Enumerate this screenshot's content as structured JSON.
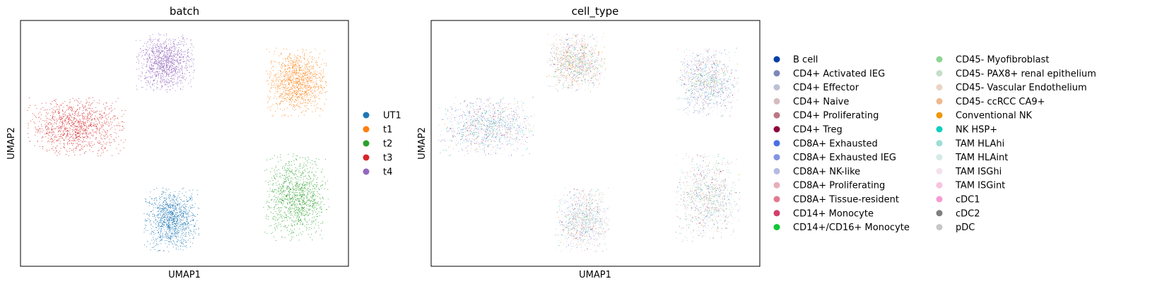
{
  "chart_data": [
    {
      "type": "scatter",
      "title": "batch",
      "xlabel": "UMAP1",
      "ylabel": "UMAP2",
      "grid": false,
      "ticks": false,
      "legend_placement": "right",
      "series": [
        {
          "name": "UT1",
          "color": "#1f77b4",
          "center": [
            0.46,
            0.19
          ],
          "spread": [
            0.085,
            0.13
          ]
        },
        {
          "name": "t1",
          "color": "#ff7f0e",
          "center": [
            0.84,
            0.75
          ],
          "spread": [
            0.095,
            0.14
          ]
        },
        {
          "name": "t2",
          "color": "#2ca02c",
          "center": [
            0.84,
            0.28
          ],
          "spread": [
            0.1,
            0.18
          ]
        },
        {
          "name": "t3",
          "color": "#d62728",
          "center": [
            0.17,
            0.57
          ],
          "spread": [
            0.15,
            0.12
          ]
        },
        {
          "name": "t4",
          "color": "#9467bd",
          "center": [
            0.44,
            0.83
          ],
          "spread": [
            0.09,
            0.12
          ]
        }
      ]
    },
    {
      "type": "scatter",
      "title": "cell_type",
      "xlabel": "UMAP1",
      "ylabel": "UMAP2",
      "grid": false,
      "ticks": false,
      "legend_placement": "right",
      "legend_columns": 2,
      "categories": [
        {
          "name": "B cell",
          "color": "#023fa5"
        },
        {
          "name": "CD4+ Activated IEG",
          "color": "#7d87b9"
        },
        {
          "name": "CD4+ Effector",
          "color": "#bec1d4"
        },
        {
          "name": "CD4+ Naive",
          "color": "#d6bcc0"
        },
        {
          "name": "CD4+ Proliferating",
          "color": "#bb7784"
        },
        {
          "name": "CD4+ Treg",
          "color": "#8e063b"
        },
        {
          "name": "CD8A+ Exhausted",
          "color": "#4a6fe3"
        },
        {
          "name": "CD8A+ Exhausted IEG",
          "color": "#8595e1"
        },
        {
          "name": "CD8A+ NK-like",
          "color": "#b5bbe3"
        },
        {
          "name": "CD8A+ Proliferating",
          "color": "#e6afb9"
        },
        {
          "name": "CD8A+ Tissue-resident",
          "color": "#e07b91"
        },
        {
          "name": "CD14+ Monocyte",
          "color": "#d33f6a"
        },
        {
          "name": "CD14+/CD16+ Monocyte",
          "color": "#11c638"
        },
        {
          "name": "CD45- Myofibroblast",
          "color": "#8dd593"
        },
        {
          "name": "CD45- PAX8+ renal epithelium",
          "color": "#c6dec7"
        },
        {
          "name": "CD45- Vascular Endothelium",
          "color": "#ead3c6"
        },
        {
          "name": "CD45- ccRCC CA9+",
          "color": "#f0b98d"
        },
        {
          "name": "Conventional NK",
          "color": "#ef9708"
        },
        {
          "name": "NK HSP+",
          "color": "#0fcfc0"
        },
        {
          "name": "TAM HLAhi",
          "color": "#9cded6"
        },
        {
          "name": "TAM HLAint",
          "color": "#d5eae7"
        },
        {
          "name": "TAM ISGhi",
          "color": "#f3e1eb"
        },
        {
          "name": "TAM ISGint",
          "color": "#f6c4e1"
        },
        {
          "name": "cDC1",
          "color": "#f79cd4"
        },
        {
          "name": "cDC2",
          "color": "#7f7f7f"
        },
        {
          "name": "pDC",
          "color": "#c7c7c7"
        }
      ]
    }
  ]
}
